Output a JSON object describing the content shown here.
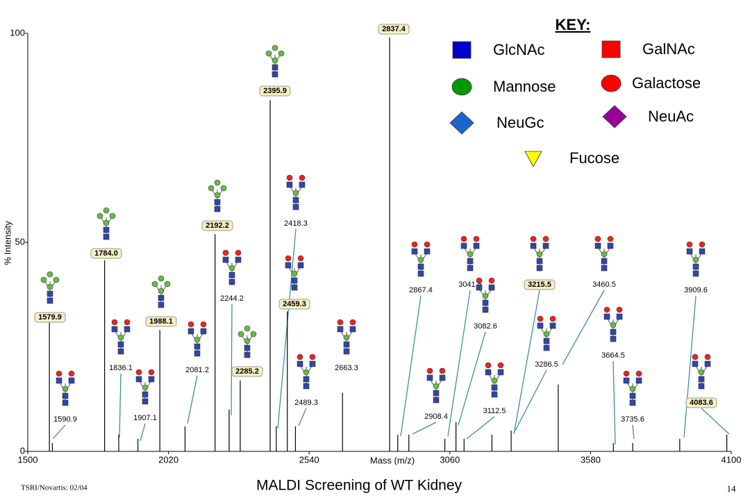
{
  "chart_data": {
    "type": "spectrum",
    "title": "MALDI Screening of WT Kidney",
    "xlabel": "Mass (m/z)",
    "ylabel": "% Intensity",
    "footer": "TSRI/Novartis: 02/04",
    "page_number": "14",
    "color": "#000000",
    "xlim": [
      1500,
      4100
    ],
    "xticks": [
      1500,
      2020,
      2540,
      3060,
      3580,
      4100
    ],
    "ylim": [
      0,
      100
    ],
    "yticks": [
      0,
      50,
      100
    ],
    "x": [
      1579.9,
      1590.9,
      1784.0,
      1836.1,
      1907.1,
      1988.1,
      2081.2,
      2192.2,
      2244.2,
      2285.2,
      2395.9,
      2418.3,
      2459.3,
      2489.3,
      2663.3,
      2837.4,
      2867.4,
      2908.4,
      3041.5,
      3082.6,
      3112.5,
      3215.5,
      3286.5,
      3460.5,
      3664.5,
      3735.6,
      3909.6,
      4083.6
    ],
    "values": [
      31,
      2,
      45.7,
      4,
      3,
      29,
      6,
      52,
      10,
      17,
      84,
      6,
      33.5,
      6,
      14,
      99,
      4,
      4,
      3,
      7,
      3,
      4,
      5,
      16,
      2,
      2,
      3,
      4
    ],
    "peak_labels": [
      "1579.9",
      "1590.9",
      "1784.0",
      "1836.1",
      "1907.1",
      "1988.1",
      "2081.2",
      "2192.2",
      "2244.2",
      "2285.2",
      "2395.9",
      "2418.3",
      "2459.3",
      "2489.3",
      "2663.3",
      "2837.4",
      "2867.4",
      "2908.4",
      "3041.5",
      "3082.6",
      "3112.5",
      "3215.5",
      "3286.5",
      "3460.5",
      "3664.5",
      "3735.6",
      "3909.6",
      "4083.6"
    ],
    "highlighted": [
      true,
      false,
      true,
      false,
      false,
      true,
      false,
      true,
      false,
      true,
      true,
      false,
      true,
      false,
      false,
      true,
      false,
      false,
      false,
      false,
      false,
      true,
      false,
      false,
      false,
      false,
      false,
      true
    ],
    "key": {
      "title": "KEY:",
      "items": [
        {
          "name": "GlcNAc",
          "shape": "square",
          "color": "#0000cc"
        },
        {
          "name": "GalNAc",
          "shape": "square",
          "color": "#ff0000"
        },
        {
          "name": "Mannose",
          "shape": "circle",
          "color": "#009900"
        },
        {
          "name": "Galactose",
          "shape": "circle",
          "color": "#ff0000"
        },
        {
          "name": "NeuGc",
          "shape": "diamond",
          "color": "#1a66cc"
        },
        {
          "name": "NeuAc",
          "shape": "diamond",
          "color": "#990099"
        },
        {
          "name": "Fucose",
          "shape": "triangle",
          "color": "#ffff00"
        }
      ]
    }
  }
}
